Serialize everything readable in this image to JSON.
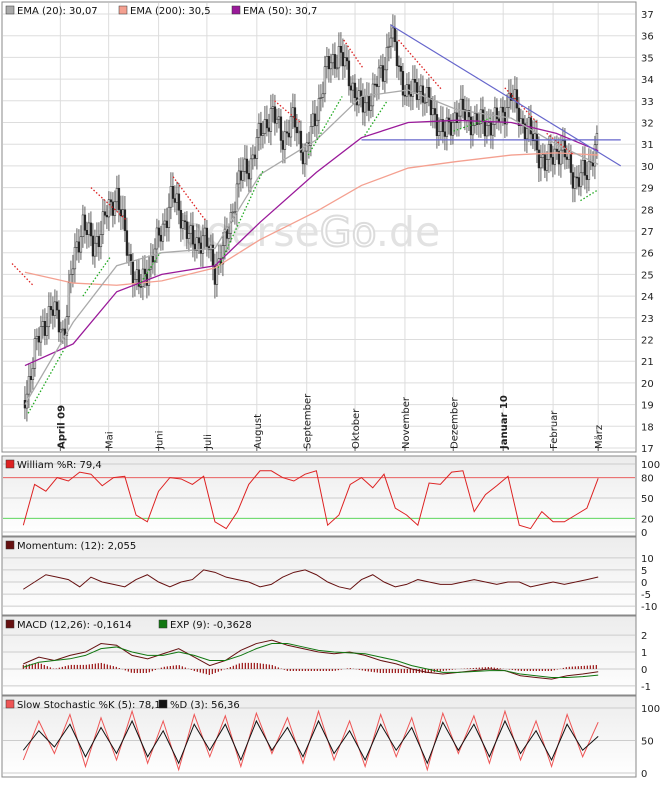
{
  "watermark": {
    "part1": "boerse",
    "part2": "Go",
    "part3": ".de"
  },
  "main_legend": [
    {
      "label": "EMA (20): 30,07",
      "color": "#aaaaaa"
    },
    {
      "label": "EMA (200): 30,5",
      "color": "#f4a090"
    },
    {
      "label": "EMA (50): 30,7",
      "color": "#9a1a9a"
    }
  ],
  "panel_legends": {
    "williams": [
      {
        "label": "William %R: 79,4",
        "color": "#dd2222"
      }
    ],
    "momentum": [
      {
        "label": "Momentum: (12): 2,055",
        "color": "#661111"
      }
    ],
    "macd": [
      {
        "label": "MACD (12,26): -0,1614",
        "color": "#661111"
      },
      {
        "label": "EXP (9): -0,3628",
        "color": "#117711"
      }
    ],
    "stochastic": [
      {
        "label": "Slow Stochastic %K (5): 78,12",
        "color": "#ee5555"
      },
      {
        "label": "%D (3): 56,36",
        "color": "#111111"
      }
    ]
  },
  "chart_data": [
    {
      "type": "candlestick",
      "x_axis_type": "date",
      "months": [
        {
          "label": "April 09",
          "bold": true
        },
        {
          "label": "Mai",
          "bold": false
        },
        {
          "label": "Juni",
          "bold": false
        },
        {
          "label": "Juli",
          "bold": false
        },
        {
          "label": "August",
          "bold": false
        },
        {
          "label": "September",
          "bold": false
        },
        {
          "label": "Oktober",
          "bold": false
        },
        {
          "label": "November",
          "bold": false
        },
        {
          "label": "Dezember",
          "bold": false
        },
        {
          "label": "Januar 10",
          "bold": true
        },
        {
          "label": "Februar",
          "bold": false
        },
        {
          "label": "März",
          "bold": false
        }
      ],
      "y_ticks": [
        17,
        18,
        19,
        20,
        21,
        22,
        23,
        24,
        25,
        26,
        27,
        28,
        29,
        30,
        31,
        32,
        33,
        34,
        35,
        36,
        37
      ],
      "ylim": [
        17,
        37
      ],
      "close_path": [
        [
          "2009-03-10",
          19.2
        ],
        [
          "2009-03-16",
          21.5
        ],
        [
          "2009-03-26",
          23.5
        ],
        [
          "2009-04-03",
          22.3
        ],
        [
          "2009-04-09",
          25.5
        ],
        [
          "2009-04-15",
          27.5
        ],
        [
          "2009-04-21",
          26.2
        ],
        [
          "2009-04-29",
          27.6
        ],
        [
          "2009-05-06",
          28.8
        ],
        [
          "2009-05-13",
          26.0
        ],
        [
          "2009-05-20",
          24.3
        ],
        [
          "2009-05-27",
          25.6
        ],
        [
          "2009-06-03",
          27.0
        ],
        [
          "2009-06-09",
          28.6
        ],
        [
          "2009-06-15",
          27.8
        ],
        [
          "2009-06-22",
          26.3
        ],
        [
          "2009-06-29",
          26.8
        ],
        [
          "2009-07-06",
          25.2
        ],
        [
          "2009-07-13",
          26.5
        ],
        [
          "2009-07-20",
          29.2
        ],
        [
          "2009-07-27",
          30.0
        ],
        [
          "2009-08-03",
          31.4
        ],
        [
          "2009-08-10",
          32.5
        ],
        [
          "2009-08-17",
          31.3
        ],
        [
          "2009-08-24",
          32.1
        ],
        [
          "2009-08-31",
          30.4
        ],
        [
          "2009-09-07",
          32.5
        ],
        [
          "2009-09-14",
          34.6
        ],
        [
          "2009-09-21",
          35.2
        ],
        [
          "2009-09-28",
          34.0
        ],
        [
          "2009-10-05",
          32.6
        ],
        [
          "2009-10-12",
          33.4
        ],
        [
          "2009-10-19",
          34.5
        ],
        [
          "2009-10-23",
          36.3
        ],
        [
          "2009-10-28",
          34.5
        ],
        [
          "2009-11-03",
          33.2
        ],
        [
          "2009-11-10",
          33.7
        ],
        [
          "2009-11-17",
          32.6
        ],
        [
          "2009-11-26",
          31.4
        ],
        [
          "2009-12-03",
          32.5
        ],
        [
          "2009-12-11",
          32.2
        ],
        [
          "2009-12-18",
          31.9
        ],
        [
          "2009-12-28",
          32.0
        ],
        [
          "2010-01-06",
          33.2
        ],
        [
          "2010-01-13",
          32.0
        ],
        [
          "2010-01-20",
          31.2
        ],
        [
          "2010-01-27",
          30.0
        ],
        [
          "2010-02-03",
          30.8
        ],
        [
          "2010-02-10",
          30.3
        ],
        [
          "2010-02-16",
          29.2
        ],
        [
          "2010-02-22",
          29.8
        ],
        [
          "2010-02-25",
          30.5
        ],
        [
          "2010-03-01",
          31.0
        ]
      ],
      "ema20": [
        [
          "2009-03-10",
          19.0
        ],
        [
          "2009-04-09",
          22.8
        ],
        [
          "2009-05-06",
          25.4
        ],
        [
          "2009-06-03",
          26.0
        ],
        [
          "2009-07-06",
          26.2
        ],
        [
          "2009-08-03",
          29.6
        ],
        [
          "2009-09-07",
          31.2
        ],
        [
          "2009-10-05",
          33.2
        ],
        [
          "2009-11-03",
          33.5
        ],
        [
          "2009-12-03",
          32.6
        ],
        [
          "2010-01-06",
          32.2
        ],
        [
          "2010-02-03",
          31.0
        ],
        [
          "2010-03-01",
          30.07
        ]
      ],
      "ema50": [
        [
          "2009-03-10",
          20.8
        ],
        [
          "2009-04-09",
          21.8
        ],
        [
          "2009-05-06",
          24.2
        ],
        [
          "2009-06-03",
          25.0
        ],
        [
          "2009-07-06",
          25.4
        ],
        [
          "2009-08-03",
          27.4
        ],
        [
          "2009-09-07",
          29.7
        ],
        [
          "2009-10-05",
          31.3
        ],
        [
          "2009-11-03",
          32.0
        ],
        [
          "2009-12-03",
          32.1
        ],
        [
          "2010-01-06",
          32.0
        ],
        [
          "2010-02-03",
          31.5
        ],
        [
          "2010-03-01",
          30.7
        ]
      ],
      "ema200": [
        [
          "2009-03-10",
          25.1
        ],
        [
          "2009-04-09",
          24.6
        ],
        [
          "2009-05-06",
          24.5
        ],
        [
          "2009-06-03",
          24.7
        ],
        [
          "2009-07-06",
          25.3
        ],
        [
          "2009-08-03",
          26.6
        ],
        [
          "2009-09-07",
          27.9
        ],
        [
          "2009-10-05",
          29.1
        ],
        [
          "2009-11-03",
          29.9
        ],
        [
          "2009-12-03",
          30.2
        ],
        [
          "2010-01-06",
          30.5
        ],
        [
          "2010-02-03",
          30.6
        ],
        [
          "2010-03-01",
          30.5
        ]
      ],
      "trendline_falling": [
        [
          "2009-10-23",
          36.5
        ],
        [
          "2010-03-15",
          30.0
        ]
      ],
      "horizontal_line": {
        "from": "2009-10-05",
        "to": "2010-03-15",
        "value": 31.2
      }
    },
    {
      "type": "line",
      "name": "William %R",
      "y_ticks": [
        0,
        20,
        50,
        80,
        100
      ],
      "ylim": [
        0,
        100
      ],
      "levels": [
        20,
        80
      ],
      "series": [
        {
          "name": "William %R",
          "values": [
            10,
            70,
            60,
            80,
            75,
            88,
            85,
            68,
            80,
            82,
            25,
            15,
            60,
            80,
            78,
            70,
            82,
            15,
            5,
            30,
            70,
            90,
            90,
            80,
            75,
            85,
            90,
            10,
            25,
            70,
            80,
            65,
            85,
            35,
            25,
            10,
            72,
            70,
            88,
            90,
            30,
            55,
            68,
            82,
            10,
            5,
            30,
            15,
            15,
            25,
            35,
            79
          ]
        }
      ]
    },
    {
      "type": "line",
      "name": "Momentum",
      "y_ticks": [
        -10,
        -5,
        0,
        5,
        10
      ],
      "ylim": [
        -12,
        12
      ],
      "series": [
        {
          "name": "Momentum",
          "values": [
            -3,
            0,
            3,
            2,
            1,
            -2,
            2,
            0,
            -1,
            -2,
            1,
            3,
            0,
            -2,
            0,
            1,
            5,
            4,
            2,
            1,
            0,
            -2,
            -1,
            2,
            4,
            5,
            3,
            0,
            -2,
            -3,
            1,
            3,
            0,
            -2,
            -1,
            1,
            0,
            -1,
            -1,
            0,
            1,
            0,
            -1,
            0,
            0,
            -2,
            -1,
            0,
            -1,
            0,
            1,
            2.055
          ]
        }
      ]
    },
    {
      "type": "line",
      "name": "MACD",
      "y_ticks": [
        -1,
        0,
        1,
        2
      ],
      "ylim": [
        -1.3,
        2.3
      ],
      "series": [
        {
          "name": "MACD (12,26)",
          "values": [
            0.3,
            0.7,
            0.5,
            0.8,
            1.0,
            1.5,
            1.4,
            0.8,
            0.6,
            0.9,
            1.2,
            0.7,
            0.2,
            0.5,
            1.1,
            1.5,
            1.7,
            1.4,
            1.2,
            1.0,
            0.9,
            1.0,
            0.8,
            0.5,
            0.3,
            0.0,
            -0.2,
            -0.3,
            -0.2,
            -0.1,
            0.0,
            -0.1,
            -0.4,
            -0.5,
            -0.6,
            -0.4,
            -0.3,
            -0.1614
          ]
        },
        {
          "name": "EXP (9)",
          "values": [
            0.1,
            0.4,
            0.5,
            0.6,
            0.8,
            1.2,
            1.3,
            1.0,
            0.8,
            0.8,
            1.0,
            0.8,
            0.5,
            0.5,
            0.8,
            1.2,
            1.5,
            1.5,
            1.3,
            1.1,
            1.0,
            0.95,
            0.9,
            0.7,
            0.5,
            0.2,
            0.0,
            -0.2,
            -0.2,
            -0.15,
            -0.1,
            -0.1,
            -0.3,
            -0.4,
            -0.5,
            -0.5,
            -0.45,
            -0.3628
          ]
        }
      ]
    },
    {
      "type": "line",
      "name": "Slow Stochastic",
      "y_ticks": [
        0,
        50,
        100
      ],
      "ylim": [
        0,
        100
      ],
      "series": [
        {
          "name": "%K (5)",
          "values": [
            20,
            80,
            30,
            90,
            10,
            85,
            20,
            95,
            15,
            80,
            5,
            90,
            25,
            88,
            10,
            92,
            30,
            85,
            15,
            95,
            20,
            80,
            10,
            90,
            25,
            85,
            5,
            92,
            30,
            88,
            15,
            95,
            20,
            80,
            10,
            90,
            25,
            78.12
          ]
        },
        {
          "name": "%D (3)",
          "values": [
            35,
            65,
            40,
            75,
            25,
            70,
            30,
            80,
            25,
            65,
            15,
            75,
            35,
            75,
            20,
            80,
            35,
            70,
            25,
            80,
            30,
            65,
            20,
            75,
            35,
            70,
            15,
            78,
            35,
            75,
            25,
            80,
            30,
            65,
            20,
            75,
            35,
            56.36
          ]
        }
      ]
    }
  ]
}
